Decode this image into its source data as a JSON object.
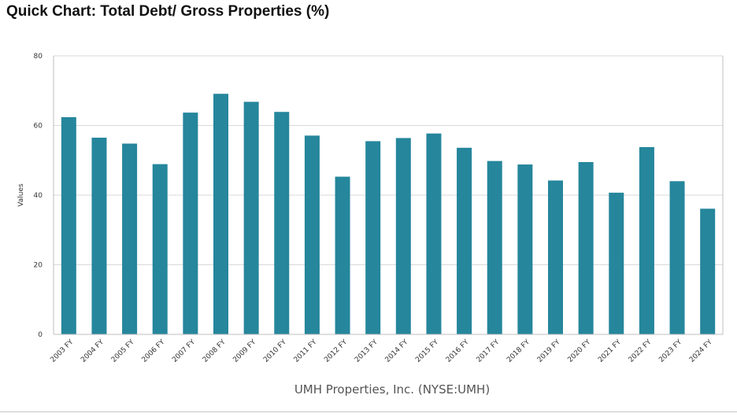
{
  "page": {
    "title": "Quick Chart: Total Debt/ Gross Properties (%)"
  },
  "colors": {
    "bar": "#25869c",
    "grid": "#d9d9d9",
    "axis": "#bfbfbf"
  },
  "chart_data": {
    "type": "bar",
    "title": "Quick Chart: Total Debt/ Gross Properties (%)",
    "xlabel": "UMH Properties, Inc. (NYSE:UMH)",
    "ylabel": "Values",
    "ylim": [
      0,
      80
    ],
    "yticks": [
      0,
      20,
      40,
      60,
      80
    ],
    "grid": true,
    "categories": [
      "2003 FY",
      "2004 FY",
      "2005 FY",
      "2006 FY",
      "2007 FY",
      "2008 FY",
      "2009 FY",
      "2010 FY",
      "2011 FY",
      "2012 FY",
      "2013 FY",
      "2014 FY",
      "2015 FY",
      "2016 FY",
      "2017 FY",
      "2018 FY",
      "2019 FY",
      "2020 FY",
      "2021 FY",
      "2022 FY",
      "2023 FY",
      "2024 FY"
    ],
    "series": [
      {
        "name": "Total Debt/ Gross Properties (%)",
        "values": [
          62.4,
          56.5,
          54.8,
          48.9,
          63.7,
          69.1,
          66.8,
          63.9,
          57.1,
          45.3,
          55.5,
          56.4,
          57.7,
          53.6,
          49.8,
          48.8,
          44.2,
          49.5,
          40.7,
          53.8,
          44.0,
          36.1
        ]
      }
    ]
  }
}
